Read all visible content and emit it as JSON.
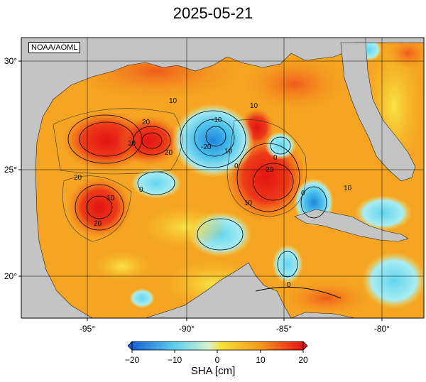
{
  "title": "2025-05-21",
  "credit": "NOAA/AOML",
  "colors": {
    "land": "#c4c4c4",
    "water_base": "#f5a020",
    "positive_high": "#e8201a",
    "positive_mid": "#f3641b",
    "neutral": "#f6d836",
    "negative_low": "#7fdcef",
    "negative_high": "#2290e0"
  },
  "map": {
    "lon_ticks": [
      "-95°",
      "-90°",
      "-85°",
      "-80°"
    ],
    "lat_ticks": [
      "30°",
      "25°",
      "20°"
    ],
    "contour_labels": [
      "20",
      "20",
      "30",
      "20",
      "10",
      "20",
      "10",
      "0",
      "0",
      "-20",
      "10",
      "10",
      "20",
      "10",
      "0",
      "0",
      "0",
      "10",
      "-10"
    ]
  },
  "colorbar": {
    "label": "SHA [cm]",
    "ticks": [
      "−20",
      "−10",
      "0",
      "10",
      "20"
    ],
    "range": [
      -20,
      20
    ]
  }
}
